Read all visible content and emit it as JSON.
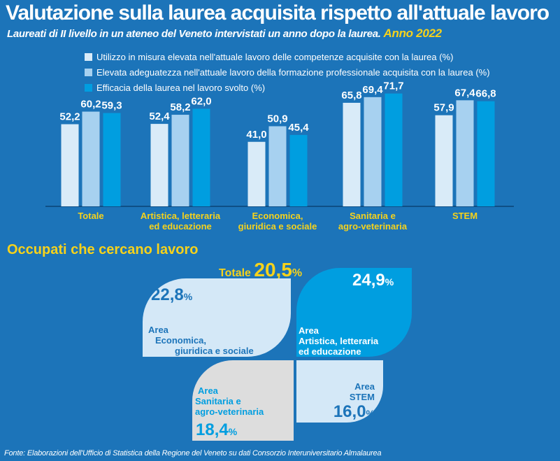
{
  "header": {
    "title": "Valutazione sulla laurea acquisita rispetto all'attuale lavoro",
    "subtitle": "Laureati di II livello in un ateneo del Veneto intervistati un anno dopo la laurea.",
    "year": "Anno 2022"
  },
  "colors": {
    "background": "#1c74b9",
    "series1": "#d9ebf8",
    "series2": "#a7d1f0",
    "series3": "#009ee0",
    "accent": "#f6d21b",
    "dark_text": "#1c74b9",
    "grey": "#dddddd"
  },
  "chart_data": {
    "type": "bar",
    "categories": [
      "Totale",
      "Artistica, letteraria ed educazione",
      "Economica, giuridica e sociale",
      "Sanitaria e agro-veterinaria",
      "STEM"
    ],
    "category_lines": [
      [
        "Totale"
      ],
      [
        "Artistica, letteraria",
        "ed educazione"
      ],
      [
        "Economica,",
        "giuridica e sociale"
      ],
      [
        "Sanitaria e",
        "agro-veterinaria"
      ],
      [
        "STEM"
      ]
    ],
    "series": [
      {
        "name": "Utilizzo in misura elevata nell'attuale lavoro delle competenze acquisite con la laurea (%)",
        "values": [
          52.2,
          52.4,
          41.0,
          65.8,
          57.9
        ],
        "labels": [
          "52,2",
          "52,4",
          "41,0",
          "65,8",
          "57,9"
        ]
      },
      {
        "name": "Elevata adeguatezza nell'attuale lavoro della formazione professionale acquisita con la laurea (%)",
        "values": [
          60.2,
          58.2,
          50.9,
          69.4,
          67.4
        ],
        "labels": [
          "60,2",
          "58,2",
          "50,9",
          "69,4",
          "67,4"
        ]
      },
      {
        "name": "Efficacia della laurea nel lavoro svolto (%)",
        "values": [
          59.3,
          62.0,
          45.4,
          71.7,
          66.8
        ],
        "labels": [
          "59,3",
          "62,0",
          "45,4",
          "71,7",
          "66,8"
        ]
      }
    ],
    "ylim": [
      0,
      100
    ],
    "legend": "top-left"
  },
  "occupati": {
    "title": "Occupati che cercano lavoro",
    "total_label": "Totale",
    "total_value": "20,5",
    "pct": "%",
    "areas": {
      "economica": {
        "value": "22,8",
        "line1": "Area",
        "line2": "Economica,",
        "line3": "giuridica e sociale"
      },
      "artistica": {
        "value": "24,9",
        "line1": "Area",
        "line2": "Artistica, letteraria",
        "line3": "ed educazione"
      },
      "sanitaria": {
        "value": "18,4",
        "line1": "Area",
        "line2": "Sanitaria e",
        "line3": "agro-veterinaria"
      },
      "stem": {
        "value": "16,0",
        "line1": "Area",
        "line2": "STEM"
      }
    }
  },
  "source": "Fonte: Elaborazioni dell'Ufficio di Statistica della Regione del Veneto su dati Consorzio Interuniversitario Almalaurea"
}
